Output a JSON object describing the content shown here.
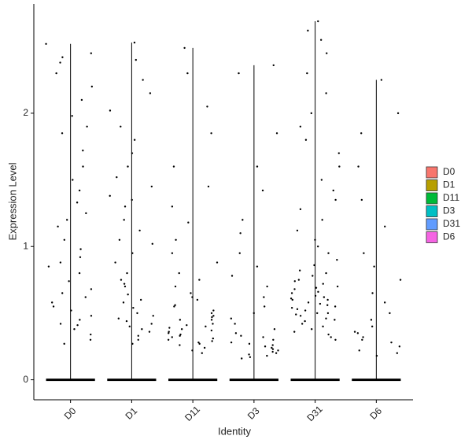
{
  "chart_data": {
    "type": "violin",
    "x_label": "Identity",
    "y_label": "Expression Level",
    "ylim": [
      -0.15,
      2.82
    ],
    "yticks": [
      0,
      1,
      2
    ],
    "legend_position": "right",
    "series": [
      {
        "name": "D0",
        "color": "#F8766D",
        "values": [
          0,
          2.52,
          2.45,
          2.38,
          2.3,
          2.1,
          1.98,
          1.85,
          1.72,
          1.6,
          1.5,
          1.42,
          1.33,
          1.25,
          1.15,
          1.05,
          0.98,
          0.92,
          0.85,
          0.8,
          0.74,
          0.68,
          0.62,
          0.58,
          0.52,
          0.48,
          0.45,
          0.41,
          0.38,
          0.34,
          0.3,
          0.27,
          2.42,
          1.9,
          0.65,
          0.55,
          0.42,
          1.2,
          0.88,
          2.2
        ]
      },
      {
        "name": "D1",
        "color": "#B79F00",
        "values": [
          0,
          2.53,
          2.25,
          2.15,
          2.02,
          1.9,
          1.8,
          1.7,
          1.6,
          1.52,
          1.45,
          1.38,
          1.3,
          1.2,
          1.12,
          1.02,
          0.95,
          0.88,
          0.8,
          0.75,
          0.7,
          0.64,
          0.58,
          0.54,
          0.5,
          0.46,
          0.42,
          0.4,
          0.36,
          0.33,
          0.3,
          0.27,
          1.35,
          0.6,
          0.48,
          0.44,
          0.38,
          1.05,
          2.4,
          0.72
        ]
      },
      {
        "name": "D11",
        "color": "#00BA38",
        "values": [
          0,
          2.49,
          2.3,
          2.05,
          1.85,
          1.6,
          1.45,
          1.3,
          1.18,
          1.05,
          0.95,
          0.88,
          0.8,
          0.75,
          0.7,
          0.65,
          0.6,
          0.56,
          0.52,
          0.5,
          0.47,
          0.45,
          0.42,
          0.4,
          0.38,
          0.36,
          0.34,
          0.32,
          0.3,
          0.28,
          0.26,
          0.24,
          0.22,
          0.2,
          0.45,
          0.37,
          0.33,
          0.41,
          0.29,
          0.55,
          0.62,
          0.35,
          0.31,
          0.27,
          0.48,
          0.39
        ]
      },
      {
        "name": "D3",
        "color": "#00BFC4",
        "values": [
          0,
          2.36,
          2.3,
          1.85,
          1.6,
          1.42,
          1.2,
          1.1,
          0.95,
          0.85,
          0.78,
          0.7,
          0.62,
          0.55,
          0.5,
          0.46,
          0.42,
          0.38,
          0.35,
          0.32,
          0.3,
          0.28,
          0.26,
          0.24,
          0.22,
          0.2,
          0.18,
          0.17,
          0.16,
          0.25,
          0.21,
          0.19,
          0.33,
          0.27,
          0.23
        ]
      },
      {
        "name": "D31",
        "color": "#619CFF",
        "values": [
          0,
          2.69,
          2.62,
          2.55,
          2.45,
          2.3,
          2.15,
          2.0,
          1.9,
          1.8,
          1.7,
          1.6,
          1.5,
          1.42,
          1.35,
          1.28,
          1.2,
          1.12,
          1.05,
          1.0,
          0.95,
          0.9,
          0.86,
          0.82,
          0.78,
          0.75,
          0.72,
          0.69,
          0.66,
          0.63,
          0.6,
          0.58,
          0.56,
          0.54,
          0.52,
          0.5,
          0.48,
          0.46,
          0.44,
          0.42,
          0.4,
          0.38,
          0.36,
          0.34,
          0.32,
          0.3,
          0.55,
          0.62,
          0.7,
          0.65,
          0.5,
          0.57,
          0.8,
          0.45,
          0.6,
          0.53,
          0.68,
          0.49,
          0.74,
          0.61
        ]
      },
      {
        "name": "D6",
        "color": "#F564E3",
        "values": [
          0,
          2.25,
          2.0,
          1.85,
          1.6,
          1.35,
          1.15,
          0.95,
          0.85,
          0.75,
          0.65,
          0.58,
          0.5,
          0.45,
          0.4,
          0.36,
          0.32,
          0.28,
          0.25,
          0.22,
          0.2,
          0.18,
          0.35,
          0.3
        ]
      }
    ]
  }
}
